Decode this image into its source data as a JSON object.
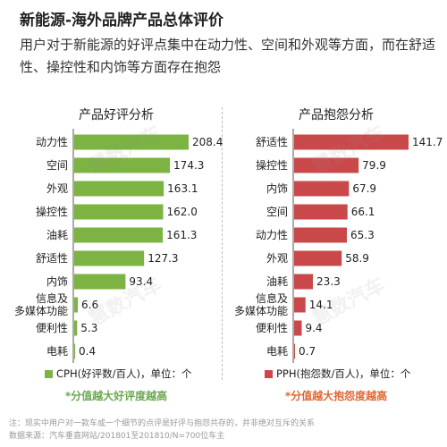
{
  "page": {
    "title": "新能源-海外品牌产品总体评价",
    "description": "用户对于新能源的好评点集中在动力性、空间和外观等方面，而在舒适性、操控性和内饰等方面存在抱怨",
    "watermark": "慧数汽车"
  },
  "chart_data": [
    {
      "type": "bar",
      "orientation": "horizontal",
      "title": "产品好评分析",
      "categories": [
        "动力性",
        "空间",
        "外观",
        "操控性",
        "油耗",
        "舒适性",
        "内饰",
        "信息及多媒体功能",
        "便利性",
        "电耗"
      ],
      "category_lines": [
        [
          "动力性"
        ],
        [
          "空间"
        ],
        [
          "外观"
        ],
        [
          "操控性"
        ],
        [
          "油耗"
        ],
        [
          "舒适性"
        ],
        [
          "内饰"
        ],
        [
          "信息及",
          "多媒体功能"
        ],
        [
          "便利性"
        ],
        [
          "电耗"
        ]
      ],
      "values": [
        208.4,
        174.3,
        163.1,
        162.0,
        161.3,
        127.3,
        93.4,
        6.6,
        5.3,
        0.4
      ],
      "value_labels": [
        "208.4",
        "174.3",
        "163.1",
        "162.0",
        "161.3",
        "127.3",
        "93.4",
        "6.6",
        "5.3",
        "0.4"
      ],
      "xlim": [
        0,
        208.4
      ],
      "color": "#7cb342",
      "legend": "CPH(好评数/百人)，单位：个",
      "legend_position": "bottom",
      "note": "*分值越大好评度越高",
      "note_color": "#6aa84f"
    },
    {
      "type": "bar",
      "orientation": "horizontal",
      "title": "产品抱怨分析",
      "categories": [
        "舒适性",
        "操控性",
        "内饰",
        "空间",
        "动力性",
        "外观",
        "油耗",
        "信息及多媒体功能",
        "便利性",
        "电耗"
      ],
      "category_lines": [
        [
          "舒适性"
        ],
        [
          "操控性"
        ],
        [
          "内饰"
        ],
        [
          "空间"
        ],
        [
          "动力性"
        ],
        [
          "外观"
        ],
        [
          "油耗"
        ],
        [
          "信息及",
          "多媒体功能"
        ],
        [
          "便利性"
        ],
        [
          "电耗"
        ]
      ],
      "values": [
        141.7,
        79.9,
        67.9,
        66.1,
        65.3,
        58.9,
        23.3,
        14.1,
        9.4,
        0.7
      ],
      "value_labels": [
        "141.7",
        "79.9",
        "67.9",
        "66.1",
        "65.3",
        "58.9",
        "23.3",
        "14.1",
        "9.4",
        "0.7"
      ],
      "xlim": [
        0,
        141.7
      ],
      "color": "#c9494b",
      "legend": "PPH(抱怨数/百人)，单位：个",
      "legend_position": "bottom",
      "note": "*分值越大抱怨度越高",
      "note_color": "#e06633"
    }
  ],
  "footnotes": {
    "note": "注：现实中用户对一款车或一个细节的点评是好评与抱怨共存的，并非绝对互斥的关系",
    "source": "数据来源：汽车垂直网站/201801至201810/N=700位车主"
  }
}
